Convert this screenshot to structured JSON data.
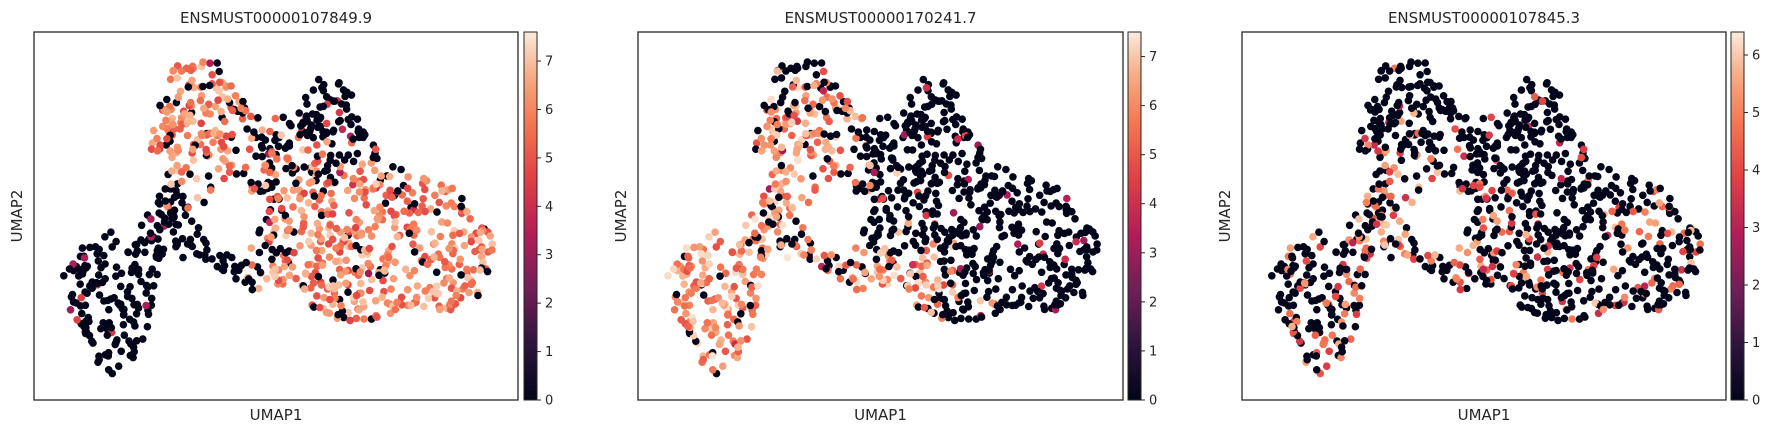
{
  "chart_data": [
    {
      "type": "scatter",
      "title": "ENSMUST00000107849.9",
      "xlabel": "UMAP1",
      "ylabel": "UMAP2",
      "colorbar": {
        "min": 0,
        "max": 7.6,
        "ticks": [
          0,
          1,
          2,
          3,
          4,
          5,
          6,
          7
        ]
      },
      "colormap": "rocket",
      "grid": false,
      "hotspots": [
        [
          0.3,
          0.86
        ],
        [
          0.36,
          0.72
        ],
        [
          0.58,
          0.57
        ],
        [
          0.73,
          0.46
        ],
        [
          0.86,
          0.46
        ],
        [
          0.62,
          0.36
        ],
        [
          0.8,
          0.3
        ],
        [
          0.93,
          0.38
        ]
      ],
      "coldspots": [
        [
          0.16,
          0.3
        ],
        [
          0.2,
          0.08
        ],
        [
          0.12,
          0.4
        ],
        [
          0.6,
          0.78
        ],
        [
          0.53,
          0.7
        ],
        [
          0.67,
          0.85
        ]
      ],
      "hot_level": 6.2,
      "cold_level": 0.0
    },
    {
      "type": "scatter",
      "title": "ENSMUST00000170241.7",
      "xlabel": "UMAP1",
      "ylabel": "UMAP2",
      "colorbar": {
        "min": 0,
        "max": 7.5,
        "ticks": [
          0,
          1,
          2,
          3,
          4,
          5,
          6,
          7
        ]
      },
      "colormap": "rocket",
      "grid": false,
      "hotspots": [
        [
          0.1,
          0.35
        ],
        [
          0.18,
          0.15
        ],
        [
          0.12,
          0.45
        ],
        [
          0.24,
          0.26
        ],
        [
          0.32,
          0.6
        ],
        [
          0.3,
          0.78
        ],
        [
          0.55,
          0.3
        ]
      ],
      "coldspots": [
        [
          0.26,
          0.9
        ],
        [
          0.6,
          0.7
        ],
        [
          0.62,
          0.55
        ],
        [
          0.56,
          0.5
        ],
        [
          0.78,
          0.45
        ],
        [
          0.86,
          0.38
        ],
        [
          0.7,
          0.25
        ]
      ],
      "hot_level": 6.4,
      "cold_level": 0.0
    },
    {
      "type": "scatter",
      "title": "ENSMUST00000107845.3",
      "xlabel": "UMAP1",
      "ylabel": "UMAP2",
      "colorbar": {
        "min": 0,
        "max": 6.4,
        "ticks": [
          0,
          1,
          2,
          3,
          4,
          5,
          6
        ]
      },
      "colormap": "rocket",
      "grid": false,
      "hotspots": [
        [
          0.17,
          0.06
        ],
        [
          0.16,
          0.36
        ],
        [
          0.33,
          0.6
        ],
        [
          0.5,
          0.42
        ],
        [
          0.87,
          0.4
        ]
      ],
      "coldspots": [
        [
          0.27,
          0.85
        ],
        [
          0.45,
          0.7
        ],
        [
          0.6,
          0.68
        ],
        [
          0.62,
          0.45
        ],
        [
          0.8,
          0.4
        ],
        [
          0.9,
          0.33
        ],
        [
          0.1,
          0.35
        ]
      ],
      "hot_level": 5.0,
      "cold_level": 0.0,
      "sparse": true
    }
  ]
}
